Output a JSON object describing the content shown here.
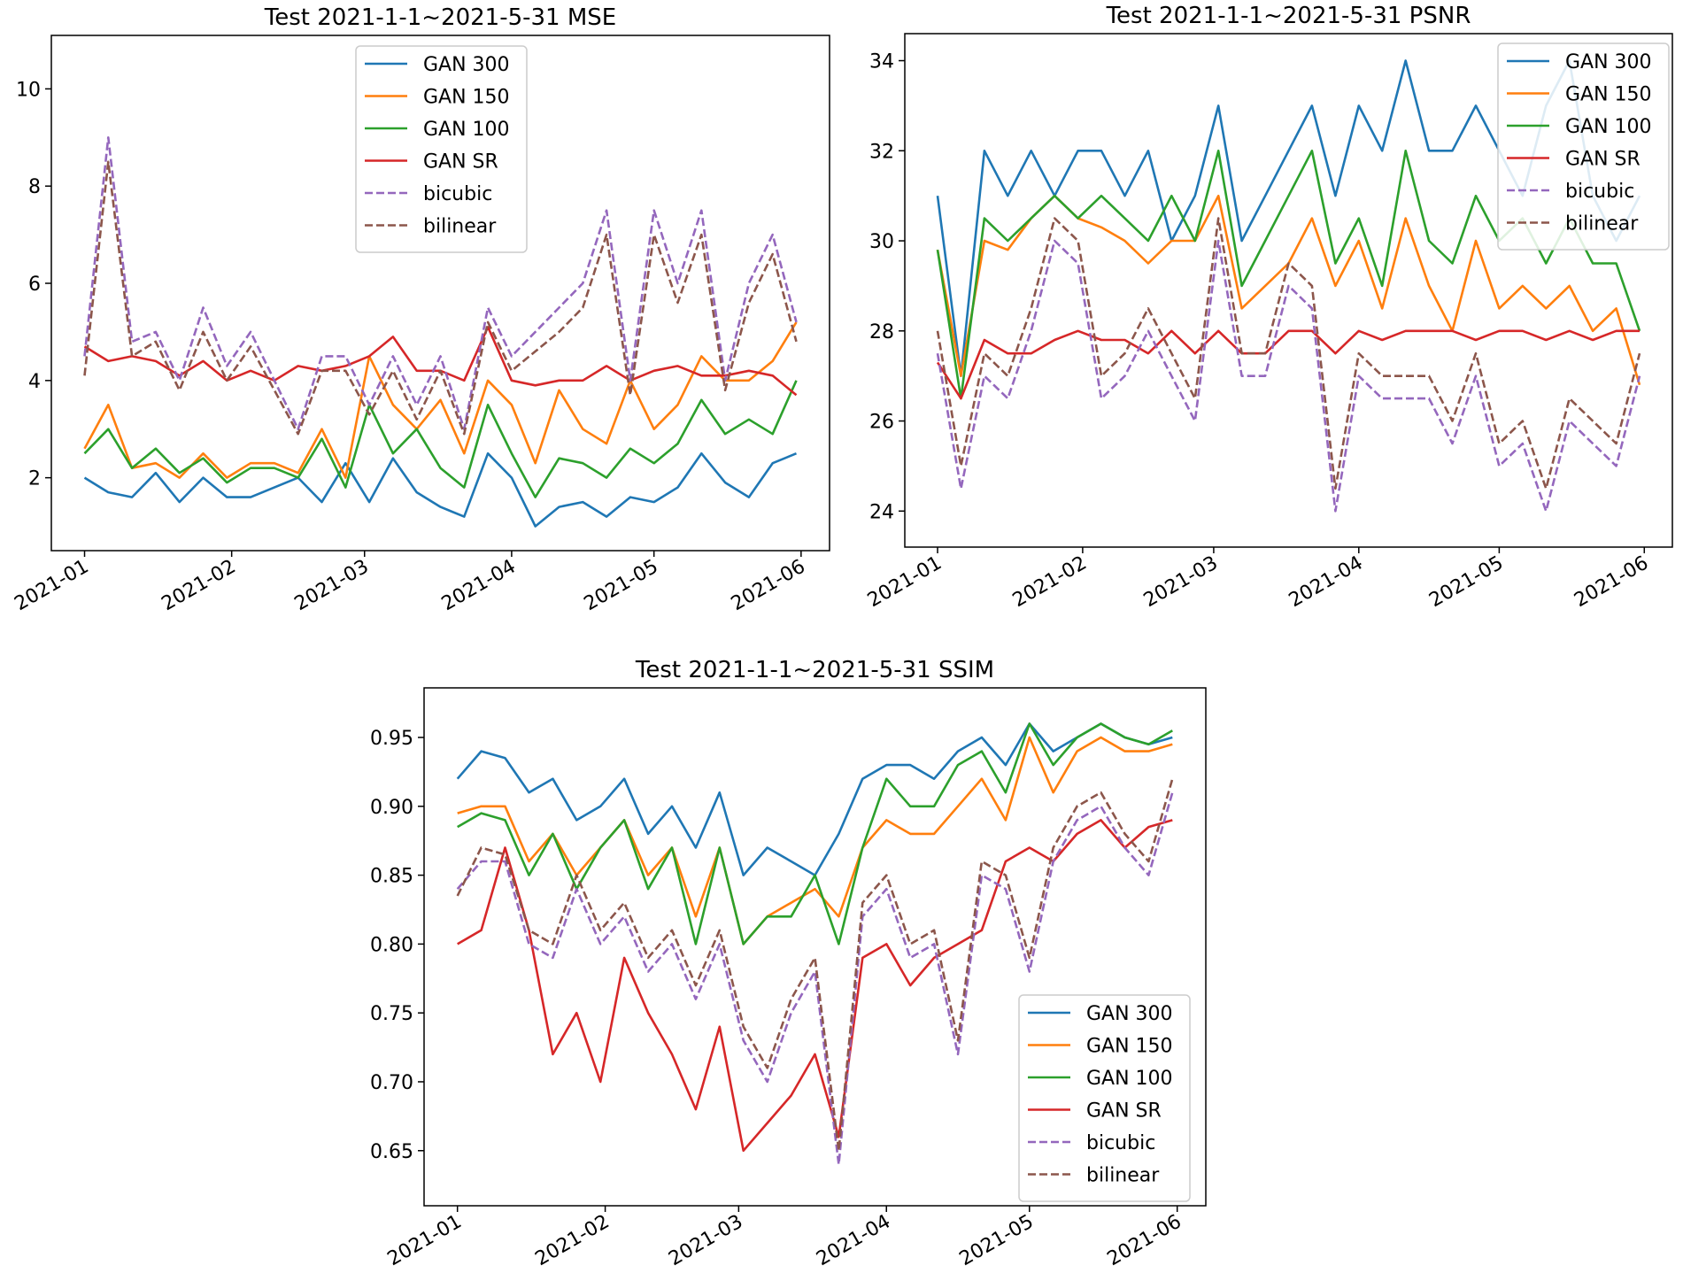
{
  "colors": {
    "GAN 300": "#1f77b4",
    "GAN 150": "#ff7f0e",
    "GAN 100": "#2ca02c",
    "GAN SR": "#d62728",
    "bicubic": "#9467bd",
    "bilinear": "#8c564b"
  },
  "dashed": [
    "bicubic",
    "bilinear"
  ],
  "x_dates": [
    "2021-01-01",
    "2021-01-06",
    "2021-01-11",
    "2021-01-16",
    "2021-01-21",
    "2021-01-26",
    "2021-01-31",
    "2021-02-05",
    "2021-02-10",
    "2021-02-15",
    "2021-02-20",
    "2021-02-25",
    "2021-03-02",
    "2021-03-07",
    "2021-03-12",
    "2021-03-17",
    "2021-03-22",
    "2021-03-27",
    "2021-04-01",
    "2021-04-06",
    "2021-04-11",
    "2021-04-16",
    "2021-04-21",
    "2021-04-26",
    "2021-05-01",
    "2021-05-06",
    "2021-05-11",
    "2021-05-16",
    "2021-05-21",
    "2021-05-26",
    "2021-05-31"
  ],
  "x_ticks": [
    {
      "date": "2021-01-01",
      "label": "2021-01"
    },
    {
      "date": "2021-02-01",
      "label": "2021-02"
    },
    {
      "date": "2021-03-01",
      "label": "2021-03"
    },
    {
      "date": "2021-04-01",
      "label": "2021-04"
    },
    {
      "date": "2021-05-01",
      "label": "2021-05"
    },
    {
      "date": "2021-06-01",
      "label": "2021-06"
    }
  ],
  "chart_data": [
    {
      "type": "line",
      "title": "Test 2021-1-1~2021-5-31 MSE",
      "xlabel": "",
      "ylabel": "",
      "xlim": [
        "2020-12-25",
        "2021-06-07"
      ],
      "ylim": [
        0.5,
        11.1
      ],
      "y_ticks": [
        {
          "v": 2,
          "label": "2"
        },
        {
          "v": 4,
          "label": "4"
        },
        {
          "v": 6,
          "label": "6"
        },
        {
          "v": 8,
          "label": "8"
        },
        {
          "v": 10,
          "label": "10"
        }
      ],
      "legend": "upper-center",
      "series": [
        {
          "name": "GAN 300",
          "values": [
            2.0,
            1.7,
            1.6,
            2.1,
            1.5,
            2.0,
            1.6,
            1.6,
            1.8,
            2.0,
            1.5,
            2.3,
            1.5,
            2.4,
            1.7,
            1.4,
            1.2,
            2.5,
            2.0,
            1.0,
            1.4,
            1.5,
            1.2,
            1.6,
            1.5,
            1.8,
            2.5,
            1.9,
            1.6,
            2.3,
            2.5
          ]
        },
        {
          "name": "GAN 150",
          "values": [
            2.6,
            3.5,
            2.2,
            2.3,
            2.0,
            2.5,
            2.0,
            2.3,
            2.3,
            2.1,
            3.0,
            2.0,
            4.5,
            3.5,
            3.0,
            3.6,
            2.5,
            4.0,
            3.5,
            2.3,
            3.8,
            3.0,
            2.7,
            4.0,
            3.0,
            3.5,
            4.5,
            4.0,
            4.0,
            4.4,
            5.2
          ]
        },
        {
          "name": "GAN 100",
          "values": [
            2.5,
            3.0,
            2.2,
            2.6,
            2.1,
            2.4,
            1.9,
            2.2,
            2.2,
            2.0,
            2.8,
            1.8,
            3.5,
            2.5,
            3.0,
            2.2,
            1.8,
            3.5,
            2.5,
            1.6,
            2.4,
            2.3,
            2.0,
            2.6,
            2.3,
            2.7,
            3.6,
            2.9,
            3.2,
            2.9,
            4.0
          ]
        },
        {
          "name": "GAN SR",
          "values": [
            4.7,
            4.4,
            4.5,
            4.4,
            4.1,
            4.4,
            4.0,
            4.2,
            4.0,
            4.3,
            4.2,
            4.3,
            4.5,
            4.9,
            4.2,
            4.2,
            4.0,
            5.1,
            4.0,
            3.9,
            4.0,
            4.0,
            4.3,
            4.0,
            4.2,
            4.3,
            4.1,
            4.1,
            4.2,
            4.1,
            3.7
          ]
        },
        {
          "name": "bicubic",
          "values": [
            4.5,
            9.0,
            4.8,
            5.0,
            4.0,
            5.5,
            4.3,
            5.0,
            4.0,
            3.0,
            4.5,
            4.5,
            3.5,
            4.5,
            3.5,
            4.5,
            3.0,
            5.5,
            4.5,
            5.0,
            5.5,
            6.0,
            7.5,
            4.0,
            7.5,
            6.0,
            7.5,
            4.0,
            6.0,
            7.0,
            5.2
          ]
        },
        {
          "name": "bilinear",
          "values": [
            4.1,
            8.5,
            4.5,
            4.8,
            3.8,
            5.0,
            4.0,
            4.7,
            3.8,
            2.9,
            4.2,
            4.2,
            3.3,
            4.2,
            3.2,
            4.2,
            2.9,
            5.2,
            4.2,
            4.6,
            5.0,
            5.5,
            7.0,
            3.7,
            7.0,
            5.6,
            7.0,
            3.8,
            5.6,
            6.6,
            4.8
          ]
        }
      ]
    },
    {
      "type": "line",
      "title": "Test 2021-1-1~2021-5-31 PSNR",
      "xlabel": "",
      "ylabel": "",
      "xlim": [
        "2020-12-25",
        "2021-06-07"
      ],
      "ylim": [
        23.2,
        34.6
      ],
      "y_ticks": [
        {
          "v": 24,
          "label": "24"
        },
        {
          "v": 26,
          "label": "26"
        },
        {
          "v": 28,
          "label": "28"
        },
        {
          "v": 30,
          "label": "30"
        },
        {
          "v": 32,
          "label": "32"
        },
        {
          "v": 34,
          "label": "34"
        }
      ],
      "legend": "upper-right",
      "series": [
        {
          "name": "GAN 300",
          "values": [
            31,
            27,
            32,
            31,
            32,
            31,
            32,
            32,
            31,
            32,
            30,
            31,
            33,
            30,
            31,
            32,
            33,
            31,
            33,
            32,
            34,
            32,
            32,
            33,
            32,
            31,
            33,
            34,
            31,
            30,
            31
          ]
        },
        {
          "name": "GAN 150",
          "values": [
            29.8,
            27,
            30,
            29.8,
            30.5,
            31,
            30.5,
            30.3,
            30,
            29.5,
            30,
            30,
            31,
            28.5,
            29,
            29.5,
            30.5,
            29,
            30,
            28.5,
            30.5,
            29,
            28,
            30,
            28.5,
            29,
            28.5,
            29,
            28,
            28.5,
            26.8
          ]
        },
        {
          "name": "GAN 100",
          "values": [
            29.8,
            26.5,
            30.5,
            30,
            30.5,
            31,
            30.5,
            31,
            30.5,
            30,
            31,
            30,
            32,
            29,
            30,
            31,
            32,
            29.5,
            30.5,
            29,
            32,
            30,
            29.5,
            31,
            30,
            30.5,
            29.5,
            30.5,
            29.5,
            29.5,
            28
          ]
        },
        {
          "name": "GAN SR",
          "values": [
            27.3,
            26.5,
            27.8,
            27.5,
            27.5,
            27.8,
            28,
            27.8,
            27.8,
            27.5,
            28,
            27.5,
            28,
            27.5,
            27.5,
            28,
            28,
            27.5,
            28,
            27.8,
            28,
            28,
            28,
            27.8,
            28,
            28,
            27.8,
            28,
            27.8,
            28,
            28
          ]
        },
        {
          "name": "bicubic",
          "values": [
            27.5,
            24.5,
            27,
            26.5,
            28,
            30,
            29.5,
            26.5,
            27,
            28,
            27,
            26,
            30,
            27,
            27,
            29,
            28.5,
            24,
            27,
            26.5,
            26.5,
            26.5,
            25.5,
            27,
            25,
            25.5,
            24,
            26,
            25.5,
            25,
            27
          ]
        },
        {
          "name": "bilinear",
          "values": [
            28,
            25,
            27.5,
            27,
            28.5,
            30.5,
            30,
            27,
            27.5,
            28.5,
            27.5,
            26.5,
            30.5,
            27.5,
            27.5,
            29.5,
            29,
            24.5,
            27.5,
            27,
            27,
            27,
            26,
            27.5,
            25.5,
            26,
            24.5,
            26.5,
            26,
            25.5,
            27.5
          ]
        }
      ]
    },
    {
      "type": "line",
      "title": "Test 2021-1-1~2021-5-31 SSIM",
      "xlabel": "",
      "ylabel": "",
      "xlim": [
        "2020-12-25",
        "2021-06-07"
      ],
      "ylim": [
        0.61,
        0.986
      ],
      "y_ticks": [
        {
          "v": 0.65,
          "label": "0.65"
        },
        {
          "v": 0.7,
          "label": "0.70"
        },
        {
          "v": 0.75,
          "label": "0.75"
        },
        {
          "v": 0.8,
          "label": "0.80"
        },
        {
          "v": 0.85,
          "label": "0.85"
        },
        {
          "v": 0.9,
          "label": "0.90"
        },
        {
          "v": 0.95,
          "label": "0.95"
        }
      ],
      "legend": "lower-right",
      "series": [
        {
          "name": "GAN 300",
          "values": [
            0.92,
            0.94,
            0.935,
            0.91,
            0.92,
            0.89,
            0.9,
            0.92,
            0.88,
            0.9,
            0.87,
            0.91,
            0.85,
            0.87,
            0.86,
            0.85,
            0.88,
            0.92,
            0.93,
            0.93,
            0.92,
            0.94,
            0.95,
            0.93,
            0.96,
            0.94,
            0.95,
            0.96,
            0.95,
            0.945,
            0.95
          ]
        },
        {
          "name": "GAN 150",
          "values": [
            0.895,
            0.9,
            0.9,
            0.86,
            0.88,
            0.85,
            0.87,
            0.89,
            0.85,
            0.87,
            0.82,
            0.87,
            0.8,
            0.82,
            0.83,
            0.84,
            0.82,
            0.87,
            0.89,
            0.88,
            0.88,
            0.9,
            0.92,
            0.89,
            0.95,
            0.91,
            0.94,
            0.95,
            0.94,
            0.94,
            0.945
          ]
        },
        {
          "name": "GAN 100",
          "values": [
            0.885,
            0.895,
            0.89,
            0.85,
            0.88,
            0.84,
            0.87,
            0.89,
            0.84,
            0.87,
            0.8,
            0.87,
            0.8,
            0.82,
            0.82,
            0.85,
            0.8,
            0.87,
            0.92,
            0.9,
            0.9,
            0.93,
            0.94,
            0.91,
            0.96,
            0.93,
            0.95,
            0.96,
            0.95,
            0.945,
            0.955
          ]
        },
        {
          "name": "GAN SR",
          "values": [
            0.8,
            0.81,
            0.87,
            0.81,
            0.72,
            0.75,
            0.7,
            0.79,
            0.75,
            0.72,
            0.68,
            0.74,
            0.65,
            0.67,
            0.69,
            0.72,
            0.66,
            0.79,
            0.8,
            0.77,
            0.79,
            0.8,
            0.81,
            0.86,
            0.87,
            0.86,
            0.88,
            0.89,
            0.87,
            0.885,
            0.89
          ]
        },
        {
          "name": "bicubic",
          "values": [
            0.84,
            0.86,
            0.86,
            0.8,
            0.79,
            0.84,
            0.8,
            0.82,
            0.78,
            0.8,
            0.76,
            0.8,
            0.73,
            0.7,
            0.75,
            0.78,
            0.64,
            0.82,
            0.84,
            0.79,
            0.8,
            0.72,
            0.85,
            0.84,
            0.78,
            0.86,
            0.89,
            0.9,
            0.87,
            0.85,
            0.91
          ]
        },
        {
          "name": "bilinear",
          "values": [
            0.835,
            0.87,
            0.865,
            0.81,
            0.8,
            0.85,
            0.81,
            0.83,
            0.79,
            0.81,
            0.77,
            0.81,
            0.74,
            0.71,
            0.76,
            0.79,
            0.65,
            0.83,
            0.85,
            0.8,
            0.81,
            0.73,
            0.86,
            0.85,
            0.79,
            0.87,
            0.9,
            0.91,
            0.88,
            0.86,
            0.92
          ]
        }
      ]
    }
  ]
}
